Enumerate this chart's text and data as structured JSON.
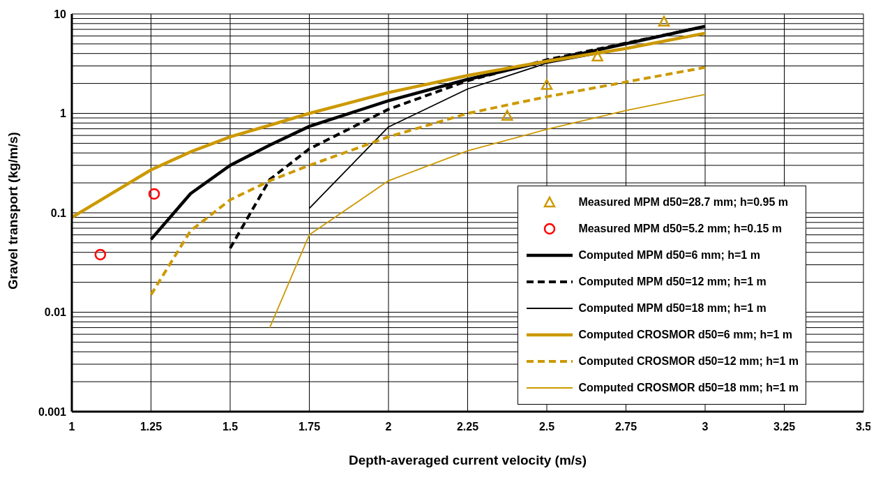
{
  "chart_data": {
    "type": "line",
    "xlabel": "Depth-averaged current velocity (m/s)",
    "ylabel": "Gravel transport (kg/m/s)",
    "log": "y",
    "xlim": [
      1,
      3.5
    ],
    "xticks": [
      1,
      1.25,
      1.5,
      1.75,
      2,
      2.25,
      2.5,
      2.75,
      3,
      3.25,
      3.5
    ],
    "ylim": [
      0.001,
      10
    ],
    "yticks": [
      0.001,
      {
        "value": 0.002,
        "label": null
      },
      {
        "value": 0.003,
        "label": null
      },
      {
        "value": 0.004,
        "label": null
      },
      {
        "value": 0.005,
        "label": null
      },
      {
        "value": 0.006,
        "label": null
      },
      {
        "value": 0.007,
        "label": null
      },
      {
        "value": 0.008,
        "label": null
      },
      {
        "value": 0.009,
        "label": null
      },
      0.01,
      {
        "value": 0.02,
        "label": null
      },
      {
        "value": 0.03,
        "label": null
      },
      {
        "value": 0.04,
        "label": null
      },
      {
        "value": 0.05,
        "label": null
      },
      {
        "value": 0.06,
        "label": null
      },
      {
        "value": 0.07,
        "label": null
      },
      {
        "value": 0.08,
        "label": null
      },
      {
        "value": 0.09,
        "label": null
      },
      0.1,
      {
        "value": 0.2,
        "label": null
      },
      {
        "value": 0.3,
        "label": null
      },
      {
        "value": 0.4,
        "label": null
      },
      {
        "value": 0.5,
        "label": null
      },
      {
        "value": 0.6,
        "label": null
      },
      {
        "value": 0.7,
        "label": null
      },
      {
        "value": 0.8,
        "label": null
      },
      {
        "value": 0.9,
        "label": null
      },
      1,
      {
        "value": 2,
        "label": null
      },
      {
        "value": 3,
        "label": null
      },
      {
        "value": 4,
        "label": null
      },
      {
        "value": 5,
        "label": null
      },
      {
        "value": 6,
        "label": null
      },
      {
        "value": 7,
        "label": null
      },
      {
        "value": 8,
        "label": null
      },
      {
        "value": 9,
        "label": null
      },
      10
    ],
    "grid": true,
    "legend": "bottom right",
    "series": [
      {
        "name": "Measured MPM d50=28.7 mm; h=0.95 m",
        "type": "scatter",
        "marker": "triangle",
        "color": "#cc9900",
        "x": [
          2.375,
          2.5,
          2.66,
          2.87
        ],
        "values": [
          0.95,
          1.94,
          3.75,
          8.4
        ]
      },
      {
        "name": "Measured MPM d50=5.2 mm; h=0.15 m",
        "type": "scatter",
        "marker": "circle",
        "color": "#ff0000",
        "x": [
          1.09,
          1.26
        ],
        "values": [
          0.038,
          0.155
        ]
      },
      {
        "name": "Computed MPM d50=6 mm; h=1 m",
        "type": "line",
        "line_style": "solid",
        "color": "#000000",
        "x": [
          1.25,
          1.375,
          1.5,
          1.625,
          1.75,
          2,
          2.25,
          2.5,
          3
        ],
        "values": [
          0.054,
          0.156,
          0.3,
          0.48,
          0.74,
          1.34,
          2.2,
          3.35,
          7.5
        ]
      },
      {
        "name": "Computed MPM d50=12 mm; h=1 m",
        "type": "line",
        "line_style": "dashed",
        "color": "#000000",
        "x": [
          1.5,
          1.625,
          1.75,
          2,
          2.25,
          2.5,
          3
        ],
        "values": [
          0.044,
          0.216,
          0.44,
          1.1,
          2.13,
          3.46,
          7.5
        ]
      },
      {
        "name": "Computed MPM d50=18 mm; h=1 m",
        "type": "line",
        "line_style": "solid",
        "color": "#000000",
        "x": [
          1.75,
          2,
          2.25,
          2.5,
          3
        ],
        "values": [
          0.111,
          0.73,
          1.76,
          3.2,
          6.3
        ]
      },
      {
        "name": "Computed CROSMOR d50=6 mm; h=1 m",
        "type": "line",
        "line_style": "solid",
        "color": "#cc9900",
        "x": [
          1,
          1.25,
          1.375,
          1.5,
          1.625,
          1.75,
          2,
          2.25,
          2.5,
          2.75,
          3
        ],
        "values": [
          0.09,
          0.27,
          0.41,
          0.58,
          0.76,
          1.0,
          1.62,
          2.4,
          3.35,
          4.5,
          6.4
        ]
      },
      {
        "name": "Computed CROSMOR d50=12 mm; h=1 m",
        "type": "line",
        "line_style": "dashed",
        "color": "#cc9900",
        "x": [
          1.25,
          1.375,
          1.5,
          1.625,
          1.75,
          2,
          2.25,
          2.5,
          2.75,
          3
        ],
        "values": [
          0.015,
          0.066,
          0.135,
          0.21,
          0.3,
          0.58,
          1.0,
          1.47,
          2.07,
          2.9
        ]
      },
      {
        "name": "Computed CROSMOR d50=18 mm; h=1 m",
        "type": "line",
        "line_style": "solid",
        "color": "#cc9900",
        "x": [
          1.625,
          1.75,
          2,
          2.25,
          2.5,
          2.75,
          3
        ],
        "values": [
          0.007,
          0.06,
          0.21,
          0.42,
          0.69,
          1.07,
          1.55
        ]
      }
    ]
  }
}
